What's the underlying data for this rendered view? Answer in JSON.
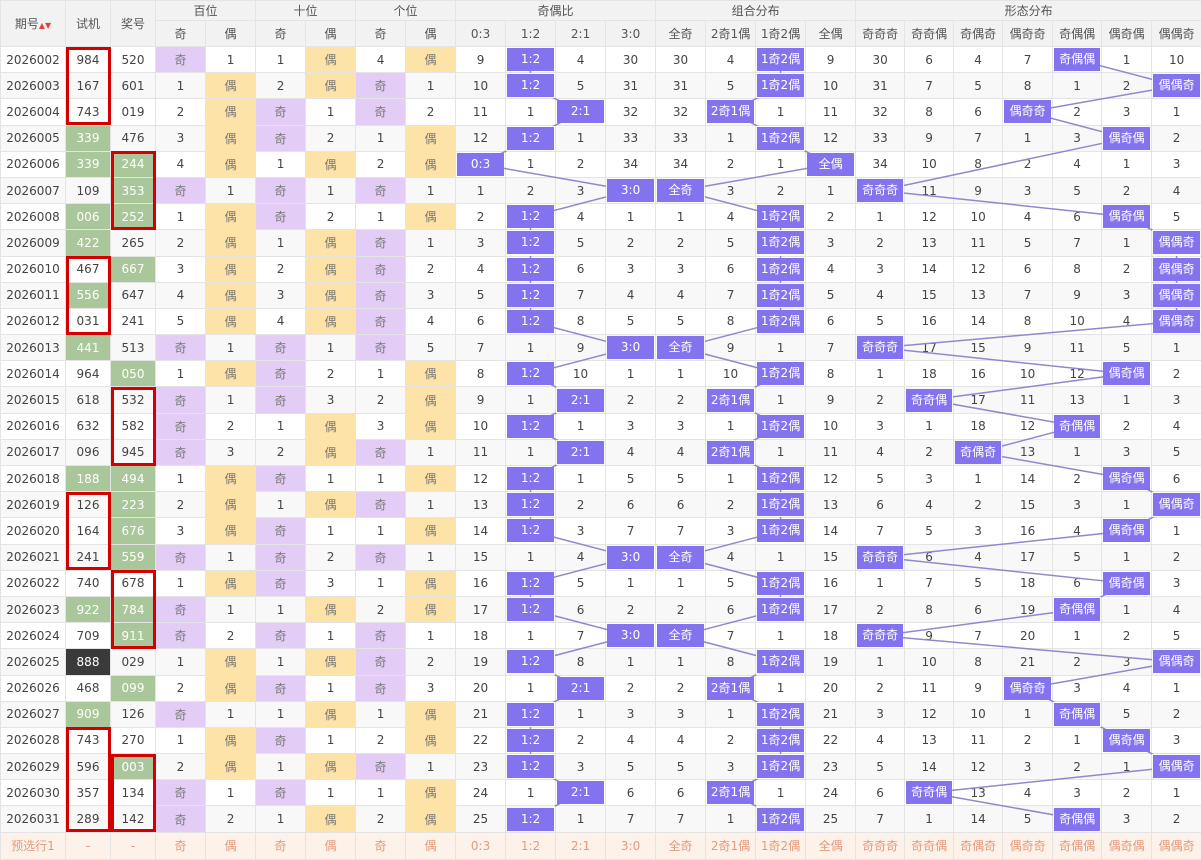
{
  "header": {
    "groups": [
      "期号",
      "试机",
      "奖号",
      "百位",
      "十位",
      "个位",
      "奇偶比",
      "组合分布",
      "形态分布"
    ],
    "sub": [
      "奇",
      "偶",
      "奇",
      "偶",
      "奇",
      "偶",
      "0:3",
      "1:2",
      "2:1",
      "3:0",
      "全奇",
      "2奇1偶",
      "1奇2偶",
      "全偶",
      "奇奇奇",
      "奇奇偶",
      "奇偶奇",
      "偶奇奇",
      "奇偶偶",
      "偶奇偶",
      "偶偶奇"
    ]
  },
  "highlight_colors": {
    "parity_odd": "#e3cdf6",
    "parity_even": "#fde3a8",
    "trend": "#8473ee",
    "trend_line": "#8f89cc",
    "number_green": "#a9c79a",
    "number_dark": "#3a3a3a",
    "box": "#d40000"
  },
  "rows": [
    {
      "period": "2026002",
      "shiji": "984",
      "jianghao": "520",
      "cells": [
        "奇",
        1,
        1,
        "偶",
        4,
        "偶",
        9,
        "1:2",
        4,
        30,
        30,
        4,
        "1奇2偶",
        9,
        30,
        6,
        4,
        7,
        "奇偶偶",
        1,
        10
      ]
    },
    {
      "period": "2026003",
      "shiji": "167",
      "jianghao": "601",
      "cells": [
        1,
        "偶",
        2,
        "偶",
        "奇",
        1,
        10,
        "1:2",
        5,
        31,
        31,
        5,
        "1奇2偶",
        10,
        31,
        7,
        5,
        8,
        1,
        2,
        "偶偶奇"
      ]
    },
    {
      "period": "2026004",
      "shiji": "743",
      "jianghao": "019",
      "cells": [
        2,
        "偶",
        "奇",
        1,
        "奇",
        2,
        11,
        1,
        "2:1",
        32,
        32,
        "2奇1偶",
        1,
        11,
        32,
        8,
        6,
        "偶奇奇",
        2,
        3,
        1
      ]
    },
    {
      "period": "2026005",
      "shiji": "339",
      "jianghao": "476",
      "shiji_bg": "#a9c79a",
      "cells": [
        3,
        "偶",
        "奇",
        2,
        1,
        "偶",
        12,
        "1:2",
        1,
        33,
        33,
        1,
        "1奇2偶",
        12,
        33,
        9,
        7,
        1,
        3,
        "偶奇偶",
        2
      ]
    },
    {
      "period": "2026006",
      "shiji": "339",
      "jianghao": "244",
      "shiji_bg": "#a9c79a",
      "jianghao_bg": "#a9c79a",
      "cells": [
        4,
        "偶",
        1,
        "偶",
        2,
        "偶",
        "0:3",
        1,
        2,
        34,
        34,
        2,
        1,
        "全偶",
        34,
        10,
        8,
        2,
        4,
        1,
        3
      ]
    },
    {
      "period": "2026007",
      "shiji": "109",
      "jianghao": "353",
      "jianghao_bg": "#a9c79a",
      "cells": [
        "奇",
        1,
        "奇",
        1,
        "奇",
        1,
        1,
        2,
        3,
        "3:0",
        "全奇",
        3,
        2,
        1,
        "奇奇奇",
        11,
        9,
        3,
        5,
        2,
        4
      ]
    },
    {
      "period": "2026008",
      "shiji": "006",
      "jianghao": "252",
      "shiji_bg": "#a9c79a",
      "jianghao_bg": "#a9c79a",
      "cells": [
        1,
        "偶",
        "奇",
        2,
        1,
        "偶",
        2,
        "1:2",
        4,
        1,
        1,
        4,
        "1奇2偶",
        2,
        1,
        12,
        10,
        4,
        6,
        "偶奇偶",
        5
      ]
    },
    {
      "period": "2026009",
      "shiji": "422",
      "jianghao": "265",
      "shiji_bg": "#a9c79a",
      "cells": [
        2,
        "偶",
        1,
        "偶",
        "奇",
        1,
        3,
        "1:2",
        5,
        2,
        2,
        5,
        "1奇2偶",
        3,
        2,
        13,
        11,
        5,
        7,
        1,
        "偶偶奇"
      ]
    },
    {
      "period": "2026010",
      "shiji": "467",
      "jianghao": "667",
      "jianghao_bg": "#a9c79a",
      "cells": [
        3,
        "偶",
        2,
        "偶",
        "奇",
        2,
        4,
        "1:2",
        6,
        3,
        3,
        6,
        "1奇2偶",
        4,
        3,
        14,
        12,
        6,
        8,
        2,
        "偶偶奇"
      ]
    },
    {
      "period": "2026011",
      "shiji": "556",
      "jianghao": "647",
      "shiji_bg": "#a9c79a",
      "cells": [
        4,
        "偶",
        3,
        "偶",
        "奇",
        3,
        5,
        "1:2",
        7,
        4,
        4,
        7,
        "1奇2偶",
        5,
        4,
        15,
        13,
        7,
        9,
        3,
        "偶偶奇"
      ]
    },
    {
      "period": "2026012",
      "shiji": "031",
      "jianghao": "241",
      "cells": [
        5,
        "偶",
        4,
        "偶",
        "奇",
        4,
        6,
        "1:2",
        8,
        5,
        5,
        8,
        "1奇2偶",
        6,
        5,
        16,
        14,
        8,
        10,
        4,
        "偶偶奇"
      ]
    },
    {
      "period": "2026013",
      "shiji": "441",
      "jianghao": "513",
      "shiji_bg": "#a9c79a",
      "cells": [
        "奇",
        1,
        "奇",
        1,
        "奇",
        5,
        7,
        1,
        9,
        "3:0",
        "全奇",
        9,
        1,
        7,
        "奇奇奇",
        17,
        15,
        9,
        11,
        5,
        1
      ]
    },
    {
      "period": "2026014",
      "shiji": "964",
      "jianghao": "050",
      "jianghao_bg": "#a9c79a",
      "cells": [
        1,
        "偶",
        "奇",
        2,
        1,
        "偶",
        8,
        "1:2",
        10,
        1,
        1,
        10,
        "1奇2偶",
        8,
        1,
        18,
        16,
        10,
        12,
        "偶奇偶",
        2
      ]
    },
    {
      "period": "2026015",
      "shiji": "618",
      "jianghao": "532",
      "cells": [
        "奇",
        1,
        "奇",
        3,
        2,
        "偶",
        9,
        1,
        "2:1",
        2,
        2,
        "2奇1偶",
        1,
        9,
        2,
        "奇奇偶",
        17,
        11,
        13,
        1,
        3
      ]
    },
    {
      "period": "2026016",
      "shiji": "632",
      "jianghao": "582",
      "cells": [
        "奇",
        2,
        1,
        "偶",
        3,
        "偶",
        10,
        "1:2",
        1,
        3,
        3,
        1,
        "1奇2偶",
        10,
        3,
        1,
        18,
        12,
        "奇偶偶",
        2,
        4
      ]
    },
    {
      "period": "2026017",
      "shiji": "096",
      "jianghao": "945",
      "cells": [
        "奇",
        3,
        2,
        "偶",
        "奇",
        1,
        11,
        1,
        "2:1",
        4,
        4,
        "2奇1偶",
        1,
        11,
        4,
        2,
        "奇偶奇",
        13,
        1,
        3,
        5
      ]
    },
    {
      "period": "2026018",
      "shiji": "188",
      "jianghao": "494",
      "shiji_bg": "#a9c79a",
      "jianghao_bg": "#a9c79a",
      "cells": [
        1,
        "偶",
        "奇",
        1,
        1,
        "偶",
        12,
        "1:2",
        1,
        5,
        5,
        1,
        "1奇2偶",
        12,
        5,
        3,
        1,
        14,
        2,
        "偶奇偶",
        6
      ]
    },
    {
      "period": "2026019",
      "shiji": "126",
      "jianghao": "223",
      "jianghao_bg": "#a9c79a",
      "cells": [
        2,
        "偶",
        1,
        "偶",
        "奇",
        1,
        13,
        "1:2",
        2,
        6,
        6,
        2,
        "1奇2偶",
        13,
        6,
        4,
        2,
        15,
        3,
        1,
        "偶偶奇"
      ]
    },
    {
      "period": "2026020",
      "shiji": "164",
      "jianghao": "676",
      "jianghao_bg": "#a9c79a",
      "cells": [
        3,
        "偶",
        "奇",
        1,
        1,
        "偶",
        14,
        "1:2",
        3,
        7,
        7,
        3,
        "1奇2偶",
        14,
        7,
        5,
        3,
        16,
        4,
        "偶奇偶",
        1
      ]
    },
    {
      "period": "2026021",
      "shiji": "241",
      "jianghao": "559",
      "jianghao_bg": "#a9c79a",
      "cells": [
        "奇",
        1,
        "奇",
        2,
        "奇",
        1,
        15,
        1,
        4,
        "3:0",
        "全奇",
        4,
        1,
        15,
        "奇奇奇",
        6,
        4,
        17,
        5,
        1,
        2
      ]
    },
    {
      "period": "2026022",
      "shiji": "740",
      "jianghao": "678",
      "cells": [
        1,
        "偶",
        "奇",
        3,
        1,
        "偶",
        16,
        "1:2",
        5,
        1,
        1,
        5,
        "1奇2偶",
        16,
        1,
        7,
        5,
        18,
        6,
        "偶奇偶",
        3
      ]
    },
    {
      "period": "2026023",
      "shiji": "922",
      "jianghao": "784",
      "shiji_bg": "#a9c79a",
      "jianghao_bg": "#a9c79a",
      "cells": [
        "奇",
        1,
        1,
        "偶",
        2,
        "偶",
        17,
        "1:2",
        6,
        2,
        2,
        6,
        "1奇2偶",
        17,
        2,
        8,
        6,
        19,
        "奇偶偶",
        1,
        4
      ]
    },
    {
      "period": "2026024",
      "shiji": "709",
      "jianghao": "911",
      "jianghao_bg": "#a9c79a",
      "cells": [
        "奇",
        2,
        "奇",
        1,
        "奇",
        1,
        18,
        1,
        7,
        "3:0",
        "全奇",
        7,
        1,
        18,
        "奇奇奇",
        9,
        7,
        20,
        1,
        2,
        5
      ]
    },
    {
      "period": "2026025",
      "shiji": "888",
      "jianghao": "029",
      "shiji_bg": "#3a3a3a",
      "cells": [
        1,
        "偶",
        1,
        "偶",
        "奇",
        2,
        19,
        "1:2",
        8,
        1,
        1,
        8,
        "1奇2偶",
        19,
        1,
        10,
        8,
        21,
        2,
        3,
        "偶偶奇"
      ]
    },
    {
      "period": "2026026",
      "shiji": "468",
      "jianghao": "099",
      "jianghao_bg": "#a9c79a",
      "cells": [
        2,
        "偶",
        "奇",
        1,
        "奇",
        3,
        20,
        1,
        "2:1",
        2,
        2,
        "2奇1偶",
        1,
        20,
        2,
        11,
        9,
        "偶奇奇",
        3,
        4,
        1
      ]
    },
    {
      "period": "2026027",
      "shiji": "909",
      "jianghao": "126",
      "shiji_bg": "#a9c79a",
      "cells": [
        "奇",
        1,
        1,
        "偶",
        1,
        "偶",
        21,
        "1:2",
        1,
        3,
        3,
        1,
        "1奇2偶",
        21,
        3,
        12,
        10,
        1,
        "奇偶偶",
        5,
        2
      ]
    },
    {
      "period": "2026028",
      "shiji": "743",
      "jianghao": "270",
      "cells": [
        1,
        "偶",
        "奇",
        1,
        2,
        "偶",
        22,
        "1:2",
        2,
        4,
        4,
        2,
        "1奇2偶",
        22,
        4,
        13,
        11,
        2,
        1,
        "偶奇偶",
        3
      ]
    },
    {
      "period": "2026029",
      "shiji": "596",
      "jianghao": "003",
      "jianghao_bg": "#a9c79a",
      "cells": [
        2,
        "偶",
        1,
        "偶",
        "奇",
        1,
        23,
        "1:2",
        3,
        5,
        5,
        3,
        "1奇2偶",
        23,
        5,
        14,
        12,
        3,
        2,
        1,
        "偶偶奇"
      ]
    },
    {
      "period": "2026030",
      "shiji": "357",
      "jianghao": "134",
      "cells": [
        "奇",
        1,
        "奇",
        1,
        1,
        "偶",
        24,
        1,
        "2:1",
        6,
        6,
        "2奇1偶",
        1,
        24,
        6,
        "奇奇偶",
        13,
        4,
        3,
        2,
        1
      ]
    },
    {
      "period": "2026031",
      "shiji": "289",
      "jianghao": "142",
      "cells": [
        "奇",
        2,
        1,
        "偶",
        2,
        "偶",
        25,
        "1:2",
        1,
        7,
        7,
        1,
        "1奇2偶",
        25,
        7,
        1,
        14,
        5,
        "奇偶偶",
        3,
        2
      ]
    }
  ],
  "preselect": {
    "period": "预选行1",
    "shiji": "-",
    "jianghao": "-",
    "cells": [
      "奇",
      "偶",
      "奇",
      "偶",
      "奇",
      "偶",
      "0:3",
      "1:2",
      "2:1",
      "3:0",
      "全奇",
      "2奇1偶",
      "1奇2偶",
      "全偶",
      "奇奇奇",
      "奇奇偶",
      "奇偶奇",
      "偶奇奇",
      "奇偶偶",
      "偶奇偶",
      "偶偶奇"
    ]
  }
}
